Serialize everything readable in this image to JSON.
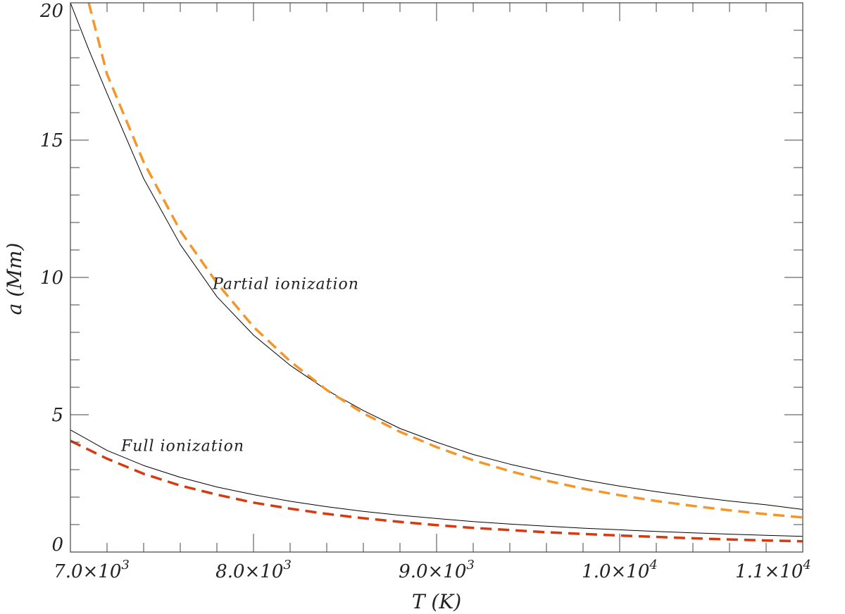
{
  "chart_data": {
    "type": "line",
    "title": "",
    "xlabel": "T (K)",
    "ylabel": "a (Mm)",
    "xlim": [
      7000,
      11000
    ],
    "ylim": [
      0,
      20
    ],
    "grid": false,
    "x_ticks": [
      {
        "value": 7000,
        "label": "7.0×10",
        "exp": "3"
      },
      {
        "value": 8000,
        "label": "8.0×10",
        "exp": "3"
      },
      {
        "value": 9000,
        "label": "9.0×10",
        "exp": "3"
      },
      {
        "value": 10000,
        "label": "1.0×10",
        "exp": "4"
      },
      {
        "value": 11000,
        "label": "1.1×10",
        "exp": "4"
      }
    ],
    "y_ticks": [
      {
        "value": 0,
        "label": "0"
      },
      {
        "value": 5,
        "label": "5"
      },
      {
        "value": 10,
        "label": "10"
      },
      {
        "value": 15,
        "label": "15"
      },
      {
        "value": 20,
        "label": "20"
      }
    ],
    "series": [
      {
        "style": "solid",
        "color": "#000000",
        "x": [
          7000,
          7100,
          7200,
          7400,
          7600,
          7800,
          8000,
          8200,
          8400,
          8600,
          8800,
          9000,
          9200,
          9400,
          9600,
          9800,
          10000,
          10200,
          10400,
          10600,
          10800,
          11000
        ],
        "y": [
          20.0,
          18.3,
          16.7,
          13.6,
          11.2,
          9.3,
          7.9,
          6.8,
          5.9,
          5.15,
          4.5,
          4.0,
          3.55,
          3.2,
          2.9,
          2.63,
          2.4,
          2.2,
          2.02,
          1.86,
          1.72,
          1.55
        ]
      },
      {
        "style": "dashed",
        "color": "#f5962a",
        "x": [
          7100,
          7200,
          7400,
          7600,
          7800,
          8000,
          8200,
          8400,
          8600,
          8800,
          9000,
          9200,
          9400,
          9600,
          9800,
          10000,
          10200,
          10400,
          10600,
          10800,
          11000
        ],
        "y": [
          20.0,
          17.4,
          14.2,
          11.7,
          9.8,
          8.2,
          6.95,
          5.9,
          5.05,
          4.38,
          3.82,
          3.34,
          2.95,
          2.6,
          2.31,
          2.07,
          1.86,
          1.68,
          1.52,
          1.38,
          1.26
        ]
      },
      {
        "style": "solid",
        "color": "#000000",
        "x": [
          7000,
          7200,
          7400,
          7600,
          7800,
          8000,
          8200,
          8400,
          8600,
          8800,
          9000,
          9200,
          9400,
          9600,
          9800,
          10000,
          10200,
          10400,
          10600,
          10800,
          11000
        ],
        "y": [
          4.45,
          3.7,
          3.15,
          2.72,
          2.37,
          2.09,
          1.85,
          1.65,
          1.48,
          1.34,
          1.22,
          1.11,
          1.02,
          0.94,
          0.87,
          0.81,
          0.75,
          0.7,
          0.65,
          0.61,
          0.57
        ]
      },
      {
        "style": "dashed",
        "color": "#d63a10",
        "x": [
          7000,
          7200,
          7400,
          7600,
          7800,
          8000,
          8200,
          8400,
          8600,
          8800,
          9000,
          9200,
          9400,
          9600,
          9800,
          10000,
          10200,
          10400,
          10600,
          10800,
          11000
        ],
        "y": [
          4.05,
          3.4,
          2.85,
          2.42,
          2.09,
          1.8,
          1.58,
          1.39,
          1.23,
          1.1,
          0.98,
          0.88,
          0.8,
          0.72,
          0.66,
          0.6,
          0.55,
          0.5,
          0.46,
          0.42,
          0.39
        ]
      }
    ],
    "annotations": [
      {
        "text": "Partial ionization",
        "x": 8000,
        "y": 9.6
      },
      {
        "text": "Full ionization",
        "x": 7500,
        "y": 3.7
      }
    ]
  }
}
